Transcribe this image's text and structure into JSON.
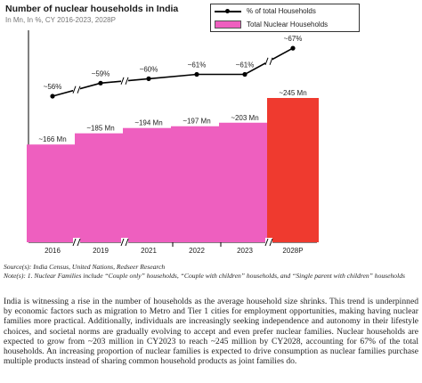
{
  "chart_data": {
    "type": "bar",
    "title": "Number of nuclear households in India",
    "subtitle": "In Mn, In %, CY 2016-2023, 2028P",
    "categories": [
      "2016",
      "2019",
      "2021",
      "2022",
      "2023",
      "2028P"
    ],
    "series": [
      {
        "name": "Total Nuclear Households",
        "type": "bar",
        "values": [
          166,
          185,
          194,
          197,
          203,
          245
        ],
        "labels": [
          "~166 Mn",
          "~185 Mn",
          "~194 Mn",
          "~197 Mn",
          "~203 Mn",
          "~245 Mn"
        ],
        "colors": [
          "#ee5fbf",
          "#ee5fbf",
          "#ee5fbf",
          "#ee5fbf",
          "#ee5fbf",
          "#ef3a2f"
        ]
      },
      {
        "name": "% of total Households",
        "type": "line",
        "values": [
          56,
          59,
          60,
          61,
          61,
          67
        ],
        "labels": [
          "~56%",
          "~59%",
          "~60%",
          "~61%",
          "~61%",
          "~67%"
        ],
        "color": "#000000"
      }
    ],
    "ylim": [
      0,
      265
    ],
    "grid": false,
    "legend_position": "top-right"
  },
  "source": "Source(s): India Census, United Nations, Redseer Research",
  "note": "Note(s): 1. Nuclear Families include “Couple only” households, “Couple with children” households, and “Single parent with children” households",
  "paragraph": "India is witnessing a rise in the number of households as the average household size shrinks. This trend is underpinned by economic factors such as migration to Metro and Tier 1 cities for employment opportunities, making having nuclear families more practical. Additionally, individuals are increasingly seeking independence and autonomy in their lifestyle choices, and societal norms are gradually evolving to accept and even prefer nuclear families. Nuclear households are expected to grow from ~203 million in CY2023 to reach ~245 million by CY2028, accounting for 67% of the total households. An increasing proportion of nuclear families is expected to drive consumption as nuclear families purchase multiple products instead of sharing common household products as joint families do."
}
